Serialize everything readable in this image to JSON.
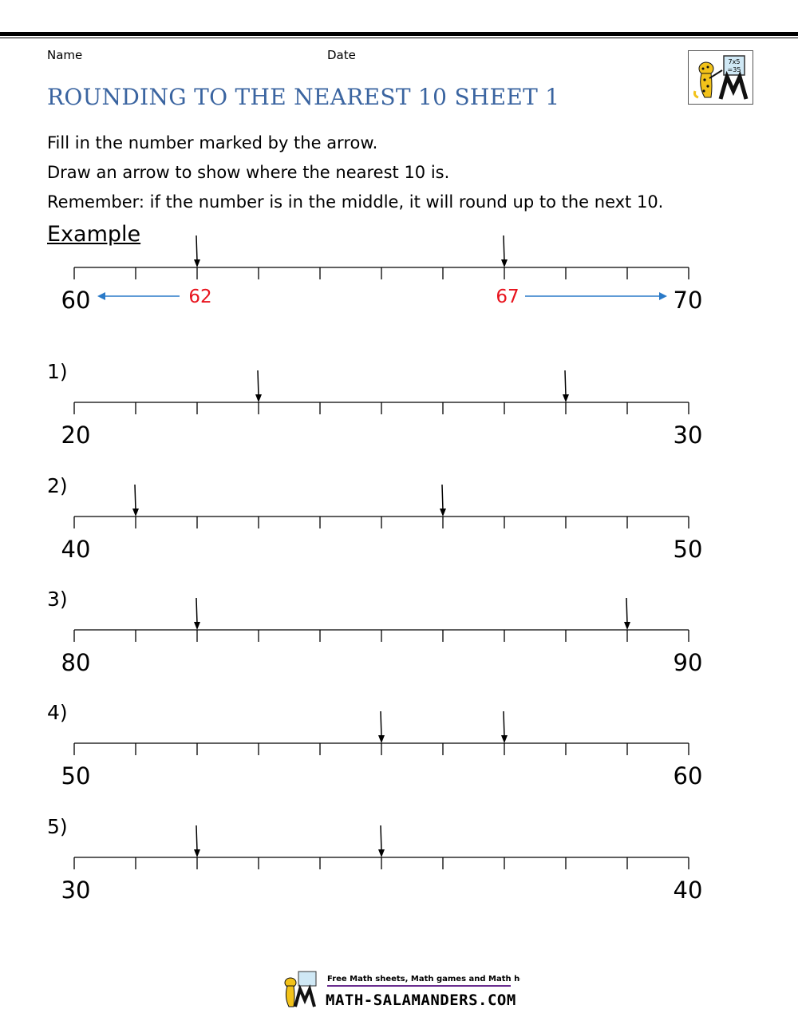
{
  "header": {
    "name_label": "Name",
    "date_label": "Date"
  },
  "title": "ROUNDING TO THE NEAREST 10 SHEET 1",
  "instructions": [
    "Fill in the number marked by the arrow.",
    "Draw an arrow to show where the nearest 10 is.",
    "Remember: if the number is in the middle, it will round up to the next 10."
  ],
  "example": {
    "label": "Example",
    "start": 60,
    "end": 70,
    "start_label": "60",
    "end_label": "70",
    "marks": [
      {
        "value": 62,
        "label": "62",
        "rounds_to": 60
      },
      {
        "value": 67,
        "label": "67",
        "rounds_to": 70
      }
    ]
  },
  "questions": [
    {
      "label": "1)",
      "start": 20,
      "end": 30,
      "start_label": "20",
      "end_label": "30",
      "arrows": [
        23,
        28
      ]
    },
    {
      "label": "2)",
      "start": 40,
      "end": 50,
      "start_label": "40",
      "end_label": "50",
      "arrows": [
        41,
        46
      ]
    },
    {
      "label": "3)",
      "start": 80,
      "end": 90,
      "start_label": "80",
      "end_label": "90",
      "arrows": [
        82,
        89
      ]
    },
    {
      "label": "4)",
      "start": 50,
      "end": 60,
      "start_label": "50",
      "end_label": "60",
      "arrows": [
        55,
        57
      ]
    },
    {
      "label": "5)",
      "start": 30,
      "end": 40,
      "start_label": "30",
      "end_label": "40",
      "arrows": [
        32,
        35
      ]
    }
  ],
  "logo": {
    "icon": "salamander-teacher-icon",
    "board_text": [
      "7x5",
      "=35"
    ]
  },
  "footer": {
    "tagline": "Free Math sheets, Math games and Math help",
    "site": "MATH-SALAMANDERS.COM"
  },
  "colors": {
    "title": "#3a64a0",
    "example_number": "#e8141e",
    "example_arrow": "#2a7ac8"
  }
}
